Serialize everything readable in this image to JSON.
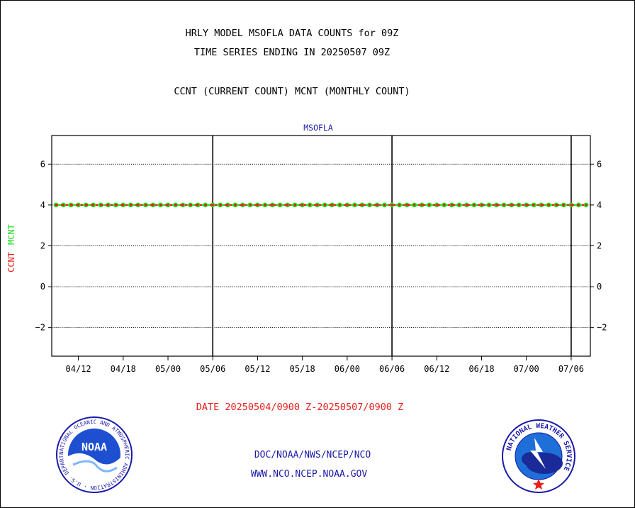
{
  "header": {
    "title_line1": "HRLY MODEL MSOFLA DATA COUNTS for 09Z",
    "title_line2": "TIME SERIES ENDING IN 20250507 09Z",
    "subtitle": "CCNT (CURRENT COUNT) MCNT (MONTHLY COUNT)"
  },
  "footer": {
    "date_range": "DATE 20250504/0900 Z-20250507/0900 Z",
    "org_line": "DOC/NOAA/NWS/NCEP/NCO",
    "url_line": "WWW.NCO.NCEP.NOAA.GOV",
    "noaa_logo_text": "NOAA",
    "noaa_ring_text": "NATIONAL OCEANIC AND ATMOSPHERIC ADMINISTRATION · U.S. DEPARTMENT OF COMMERCE ·",
    "nws_ring_text": "NATIONAL WEATHER SERVICE"
  },
  "colors": {
    "ccnt": "#e8201c",
    "mcnt": "#22e01e",
    "grid": "#000000",
    "plot_title": "#1a1aaa",
    "footer_date": "#e8201c",
    "footer_links": "#1a1aaa"
  },
  "chart_data": {
    "type": "line",
    "title": "MSOFLA",
    "ylabel_ccnt": "CCNT",
    "ylabel_mcnt": "MCNT",
    "ylim": [
      -3.4,
      7.4
    ],
    "yticks": [
      -2,
      0,
      2,
      4,
      6
    ],
    "ytick_labels": [
      "−2",
      "0",
      "2",
      "4",
      "6"
    ],
    "xlim": [
      0,
      71
    ],
    "xticks": [
      3,
      9,
      15,
      21,
      27,
      33,
      39,
      45,
      51,
      57,
      63,
      69
    ],
    "xtick_labels": [
      "04/12",
      "04/18",
      "05/00",
      "05/06",
      "05/12",
      "05/18",
      "06/00",
      "06/06",
      "06/12",
      "06/18",
      "07/00",
      "07/06"
    ],
    "day_lines": [
      21,
      45,
      69
    ],
    "grid": true,
    "series": [
      {
        "name": "CCNT",
        "x": [
          0,
          1,
          2,
          3,
          4,
          5,
          6,
          7,
          8,
          9,
          10,
          11,
          12,
          13,
          14,
          15,
          16,
          17,
          18,
          19,
          20,
          21,
          22,
          23,
          24,
          25,
          26,
          27,
          28,
          29,
          30,
          31,
          32,
          33,
          34,
          35,
          36,
          37,
          38,
          39,
          40,
          41,
          42,
          43,
          44,
          45,
          46,
          47,
          48,
          49,
          50,
          51,
          52,
          53,
          54,
          55,
          56,
          57,
          58,
          59,
          60,
          61,
          62,
          63,
          64,
          65,
          66,
          67,
          68,
          69,
          70,
          71
        ],
        "y": [
          4,
          4,
          4,
          4,
          4,
          4,
          4,
          4,
          4,
          4,
          4,
          4,
          4,
          4,
          4,
          4,
          4,
          4,
          4,
          4,
          4,
          4,
          4,
          4,
          4,
          4,
          4,
          4,
          4,
          4,
          4,
          4,
          4,
          4,
          4,
          4,
          4,
          4,
          4,
          4,
          4,
          4,
          4,
          4,
          4,
          4,
          4,
          4,
          4,
          4,
          4,
          4,
          4,
          4,
          4,
          4,
          4,
          4,
          4,
          4,
          4,
          4,
          4,
          4,
          4,
          4,
          4,
          4,
          4,
          4,
          4,
          4
        ]
      },
      {
        "name": "MCNT",
        "x": [
          0,
          1,
          2,
          3,
          4,
          5,
          6,
          7,
          8,
          9,
          10,
          11,
          12,
          13,
          14,
          15,
          16,
          17,
          18,
          19,
          20,
          21,
          22,
          23,
          24,
          25,
          26,
          27,
          28,
          29,
          30,
          31,
          32,
          33,
          34,
          35,
          36,
          37,
          38,
          39,
          40,
          41,
          42,
          43,
          44,
          45,
          46,
          47,
          48,
          49,
          50,
          51,
          52,
          53,
          54,
          55,
          56,
          57,
          58,
          59,
          60,
          61,
          62,
          63,
          64,
          65,
          66,
          67,
          68,
          69,
          70,
          71
        ],
        "y": [
          4,
          4,
          4,
          4,
          4,
          4,
          4,
          4,
          4,
          4,
          4,
          4,
          4,
          4,
          4,
          4,
          4,
          4,
          4,
          4,
          4,
          4,
          4,
          4,
          4,
          4,
          4,
          4,
          4,
          4,
          4,
          4,
          4,
          4,
          4,
          4,
          4,
          4,
          4,
          4,
          4,
          4,
          4,
          4,
          4,
          4,
          4,
          4,
          4,
          4,
          4,
          4,
          4,
          4,
          4,
          4,
          4,
          4,
          4,
          4,
          4,
          4,
          4,
          4,
          4,
          4,
          4,
          4,
          4,
          4,
          4,
          4
        ]
      }
    ]
  }
}
